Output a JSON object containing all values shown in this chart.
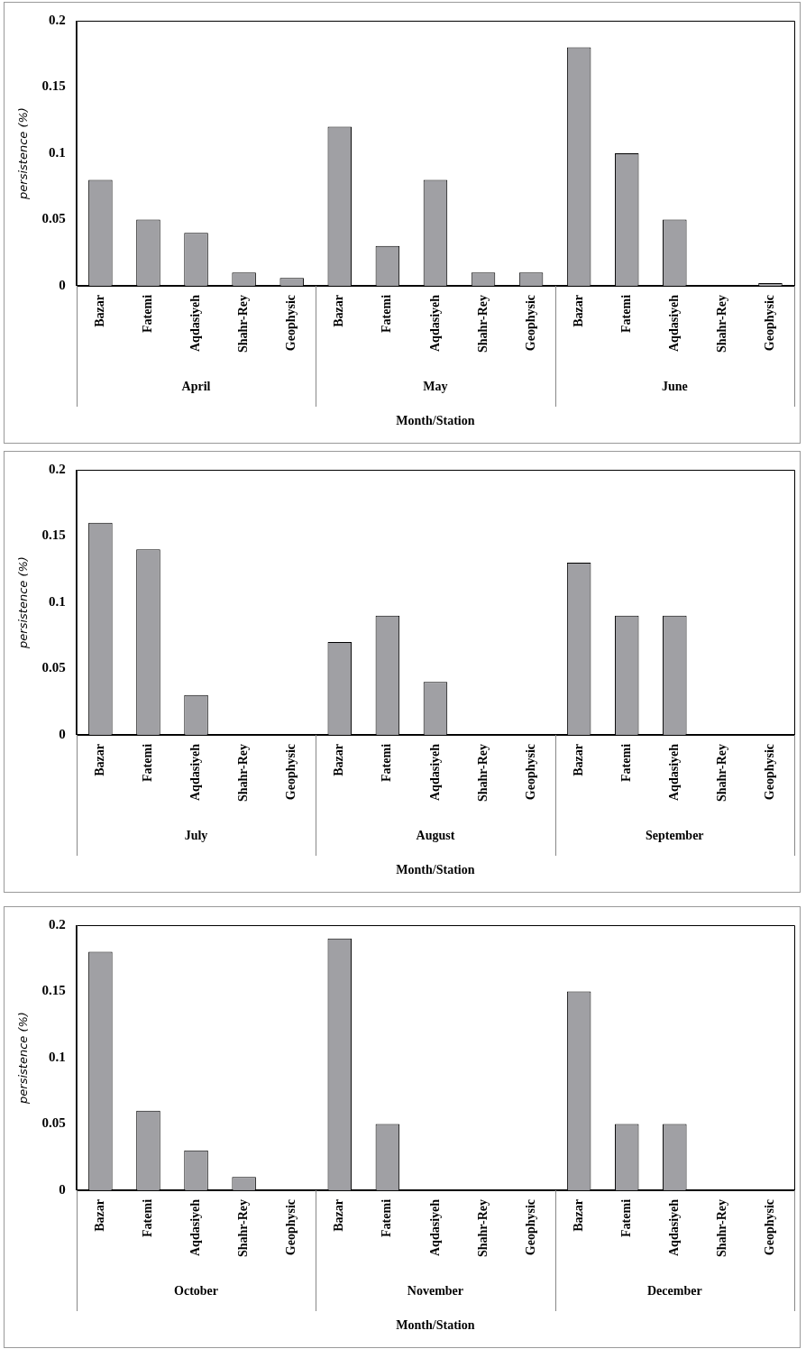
{
  "chart_data": [
    {
      "type": "bar",
      "ylabel": "persistence (%)",
      "xlabel": "Month/Station",
      "categories": [
        "Bazar",
        "Fatemi",
        "Aqdasiyeh",
        "Shahr-Rey",
        "Geophysic",
        "Bazar",
        "Fatemi",
        "Aqdasiyeh",
        "Shahr-Rey",
        "Geophysic",
        "Bazar",
        "Fatemi",
        "Aqdasiyeh",
        "Shahr-Rey",
        "Geophysic"
      ],
      "values": [
        0.08,
        0.05,
        0.04,
        0.01,
        0.006,
        0.12,
        0.03,
        0.08,
        0.01,
        0.01,
        0.18,
        0.1,
        0.05,
        0,
        0.002
      ],
      "color": "#a0a0a4",
      "ylim": [
        0,
        0.2
      ],
      "yticks": [
        0,
        0.05,
        0.1,
        0.15,
        0.2
      ],
      "annotations": [
        "April",
        "May",
        "June"
      ]
    },
    {
      "type": "bar",
      "ylabel": "persistence (%)",
      "xlabel": "Month/Station",
      "categories": [
        "Bazar",
        "Fatemi",
        "Aqdasiyeh",
        "Shahr-Rey",
        "Geophysic",
        "Bazar",
        "Fatemi",
        "Aqdasiyeh",
        "Shahr-Rey",
        "Geophysic",
        "Bazar",
        "Fatemi",
        "Aqdasiyeh",
        "Shahr-Rey",
        "Geophysic"
      ],
      "values": [
        0.16,
        0.14,
        0.03,
        0,
        0,
        0.07,
        0.09,
        0.04,
        0,
        0,
        0.13,
        0.09,
        0.09,
        0,
        0
      ],
      "color": "#a0a0a4",
      "ylim": [
        0,
        0.2
      ],
      "yticks": [
        0,
        0.05,
        0.1,
        0.15,
        0.2
      ],
      "annotations": [
        "July",
        "August",
        "September"
      ]
    },
    {
      "type": "bar",
      "ylabel": "persistence (%)",
      "xlabel": "Month/Station",
      "categories": [
        "Bazar",
        "Fatemi",
        "Aqdasiyeh",
        "Shahr-Rey",
        "Geophysic",
        "Bazar",
        "Fatemi",
        "Aqdasiyeh",
        "Shahr-Rey",
        "Geophysic",
        "Bazar",
        "Fatemi",
        "Aqdasiyeh",
        "Shahr-Rey",
        "Geophysic"
      ],
      "values": [
        0.18,
        0.06,
        0.03,
        0.01,
        0,
        0.19,
        0.05,
        0,
        0,
        0,
        0.15,
        0.05,
        0.05,
        0,
        0
      ],
      "color": "#a0a0a4",
      "ylim": [
        0,
        0.2
      ],
      "yticks": [
        0,
        0.05,
        0.1,
        0.15,
        0.2
      ],
      "annotations": [
        "October",
        "November",
        "December"
      ]
    }
  ]
}
